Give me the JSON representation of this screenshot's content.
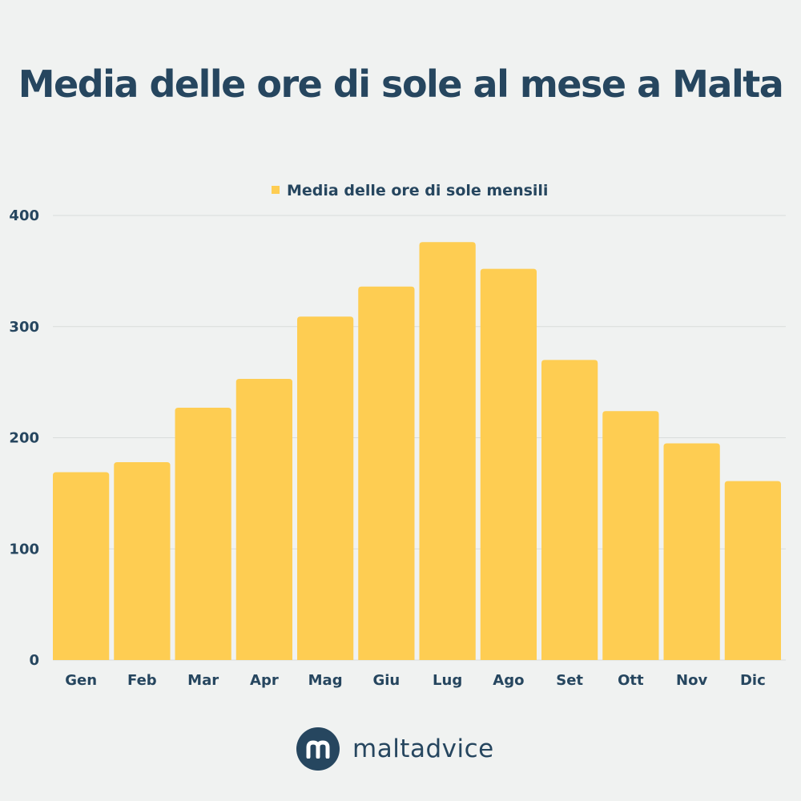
{
  "title": "Media delle ore di sole al mese a Malta",
  "brand": {
    "name": "maltadvice",
    "logo_icon": "maltadvice-logo-icon"
  },
  "colors": {
    "bar": "#fecd52",
    "text": "#26465f",
    "grid": "#d9dcdb",
    "background": "#f0f2f1"
  },
  "chart_data": {
    "type": "bar",
    "categories": [
      "Gen",
      "Feb",
      "Mar",
      "Apr",
      "Mag",
      "Giu",
      "Lug",
      "Ago",
      "Set",
      "Ott",
      "Nov",
      "Dic"
    ],
    "series": [
      {
        "name": "Media delle ore di sole mensili",
        "values": [
          169,
          178,
          227,
          253,
          309,
          336,
          376,
          352,
          270,
          224,
          195,
          161
        ]
      }
    ],
    "yticks": [
      "0",
      "100",
      "200",
      "300",
      "400"
    ],
    "ylim": [
      0,
      400
    ],
    "grid": true,
    "legend": "top-center"
  }
}
